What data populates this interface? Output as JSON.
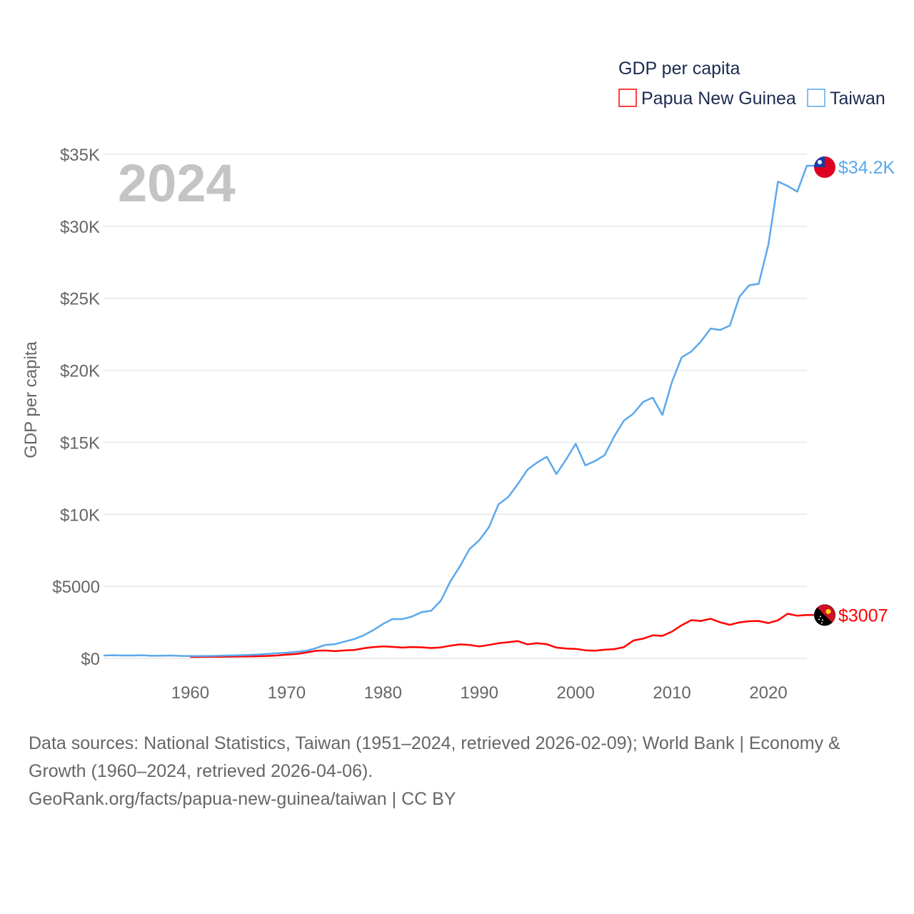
{
  "chart_data": {
    "type": "line",
    "title": "GDP per capita",
    "ylabel": "GDP per capita",
    "xlabel": "",
    "year_label": "2024",
    "ylim": [
      0,
      35000
    ],
    "xlim": [
      1951,
      2024
    ],
    "yticks": [
      0,
      5000,
      10000,
      15000,
      20000,
      25000,
      30000,
      35000
    ],
    "ytick_labels": [
      "$0",
      "$5000",
      "$10K",
      "$15K",
      "$20K",
      "$25K",
      "$30K",
      "$35K"
    ],
    "xticks": [
      1960,
      1970,
      1980,
      1990,
      2000,
      2010,
      2020
    ],
    "xtick_labels": [
      "1960",
      "1970",
      "1980",
      "1990",
      "2000",
      "2010",
      "2020"
    ],
    "grid": true,
    "legend_position": "top-right",
    "series": [
      {
        "name": "Papua New Guinea",
        "color": "#ff0000",
        "end_label": "$3007",
        "start_year": 1960,
        "values": [
          100,
          105,
          110,
          115,
          120,
          130,
          140,
          150,
          170,
          200,
          260,
          300,
          400,
          520,
          550,
          500,
          550,
          580,
          700,
          780,
          830,
          800,
          750,
          790,
          770,
          720,
          760,
          880,
          970,
          930,
          830,
          930,
          1050,
          1120,
          1200,
          970,
          1050,
          980,
          750,
          680,
          660,
          560,
          530,
          600,
          640,
          780,
          1240,
          1370,
          1600,
          1560,
          1860,
          2300,
          2650,
          2600,
          2750,
          2500,
          2330,
          2500,
          2580,
          2600,
          2450,
          2640,
          3100,
          2960,
          3007
        ]
      },
      {
        "name": "Taiwan",
        "color": "#5ba8ec",
        "end_label": "$34.2K",
        "start_year": 1951,
        "values": [
          200,
          220,
          200,
          200,
          220,
          180,
          190,
          200,
          170,
          160,
          160,
          170,
          180,
          200,
          220,
          240,
          270,
          310,
          350,
          390,
          450,
          520,
          700,
          930,
          980,
          1160,
          1330,
          1600,
          1960,
          2390,
          2730,
          2720,
          2900,
          3210,
          3300,
          4000,
          5350,
          6400,
          7600,
          8200,
          9100,
          10700,
          11200,
          12100,
          13100,
          13600,
          14000,
          12800,
          13800,
          14900,
          13400,
          13700,
          14100,
          15400,
          16500,
          17000,
          17800,
          18100,
          16900,
          19200,
          20900,
          21300,
          22000,
          22900,
          22800,
          23100,
          25100,
          25900,
          26000,
          28700,
          33100,
          32800,
          32400,
          34200
        ]
      }
    ]
  },
  "footer": {
    "sources": "Data sources: National Statistics, Taiwan (1951–2024, retrieved 2026-02-09); World Bank | Economy & Growth (1960–2024, retrieved 2026-04-06).",
    "link": "GeoRank.org/facts/papua-new-guinea/taiwan | CC BY"
  }
}
